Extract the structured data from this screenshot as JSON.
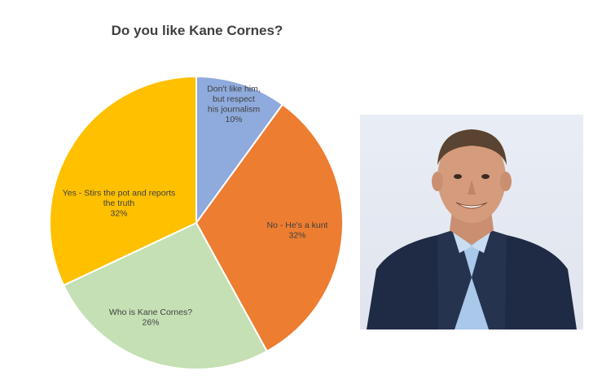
{
  "chart_data": {
    "type": "pie",
    "title": "Do you like Kane Cornes?",
    "slices": [
      {
        "label_lines": [
          "Don't like him,",
          "but respect",
          "his journalism"
        ],
        "percent_label": "10%",
        "value": 10,
        "color": "#8faadc"
      },
      {
        "label_lines": [
          "No - He's a kunt"
        ],
        "percent_label": "32%",
        "value": 32,
        "color": "#ed7d31"
      },
      {
        "label_lines": [
          "Who is Kane Cornes?"
        ],
        "percent_label": "26%",
        "value": 26,
        "color": "#c5e0b4"
      },
      {
        "label_lines": [
          "Yes - Stirs the pot and reports",
          "the truth"
        ],
        "percent_label": "32%",
        "value": 32,
        "color": "#ffc000"
      }
    ],
    "legend": "none"
  },
  "photo": {
    "subject": "portrait of a man in a navy suit and light blue shirt"
  }
}
